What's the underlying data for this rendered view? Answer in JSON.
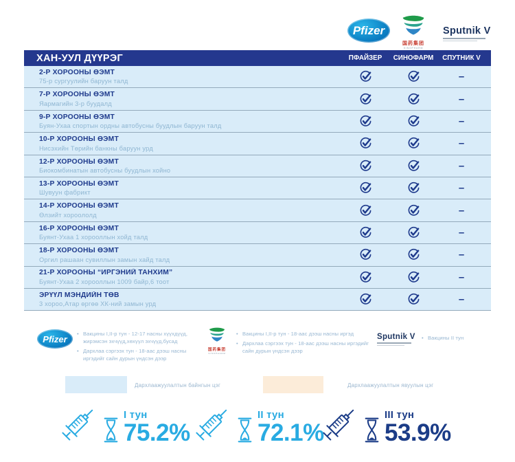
{
  "colors": {
    "navy_header": "#24388e",
    "check_navy": "#1e3a8c",
    "row_blue": "#d9ecf9",
    "cyan": "#29abe2",
    "stat_navy": "#1b3c87",
    "peach": "#fcecd9",
    "pfizer_blue": "#0093d0"
  },
  "logos": {
    "pfizer_label": "Pfizer",
    "sinopharm_cn": "国药集团",
    "sinopharm_en": "SINOPHARM",
    "sputnik_label": "Sputnik V"
  },
  "table": {
    "title": "ХАН-УУЛ ДҮҮРЭГ",
    "columns": [
      "ПФАЙЗЕР",
      "СИНОФАРМ",
      "СПУТНИК V"
    ],
    "rows": [
      {
        "name": "2-Р ХОРООНЫ ӨЭМТ",
        "location": "75-р сургуулийн баруун талд",
        "pfizer": true,
        "sinopharm": true,
        "sputnik": false
      },
      {
        "name": "7-Р ХОРООНЫ ӨЭМТ",
        "location": "Яармагийн 3-р буудалд",
        "pfizer": true,
        "sinopharm": true,
        "sputnik": false
      },
      {
        "name": "9-Р ХОРООНЫ ӨЭМТ",
        "location": "Буян-Ухаа спортын ордны автобусны буудлын баруун талд",
        "pfizer": true,
        "sinopharm": true,
        "sputnik": false
      },
      {
        "name": "10-Р ХОРООНЫ ӨЭМТ",
        "location": "Нисэхийн Төрийн банкны баруун урд",
        "pfizer": true,
        "sinopharm": true,
        "sputnik": false
      },
      {
        "name": "12-Р ХОРООНЫ ӨЭМТ",
        "location": "Биокомбинатын автобусны буудлын хойно",
        "pfizer": true,
        "sinopharm": true,
        "sputnik": false
      },
      {
        "name": "13-Р ХОРООНЫ ӨЭМТ",
        "location": "Шувуун фабрикт",
        "pfizer": true,
        "sinopharm": true,
        "sputnik": false
      },
      {
        "name": "14-Р ХОРООНЫ ӨЭМТ",
        "location": "Өлзийт хороололд",
        "pfizer": true,
        "sinopharm": true,
        "sputnik": false
      },
      {
        "name": "16-Р ХОРООНЫ ӨЭМТ",
        "location": "Буянт-Ухаа 1 хорооллын хойд талд",
        "pfizer": true,
        "sinopharm": true,
        "sputnik": false
      },
      {
        "name": "18-Р ХОРООНЫ ӨЭМТ",
        "location": "Оргил рашаан сувиллын замын хайд  талд",
        "pfizer": true,
        "sinopharm": true,
        "sputnik": false
      },
      {
        "name": "21-Р  ХОРООНЫ “ИРГЭНИЙ ТАНХИМ”",
        "location": "Буянт-Ухаа 2 хорооллын 1009 байр,6 тоот",
        "pfizer": true,
        "sinopharm": true,
        "sputnik": false
      },
      {
        "name": "ЭРҮҮЛ МЭНДИЙН ТӨВ",
        "location": "3 хороо,Атар өргөө ХК-ний замын урд",
        "pfizer": true,
        "sinopharm": true,
        "sputnik": false
      }
    ]
  },
  "vaccine_notes": {
    "pfizer": [
      "Вакцины I,II-р тун - 12-17 насны хүүхдүүд, жирэмсэн эхчүүд,хөхүүл эхчүүд,бусад",
      "Дархлаа сэргээх тун - 18-аас дээш насны иргэдийг сайн дурын үндсэн дээр"
    ],
    "sinopharm": [
      "Вакцины I,II-р тун - 18-аас дээш насны иргэд",
      "Дархлаа сэргээх тун - 18-аас дээш насны иргэдийг сайн дурын үндсэн дээр"
    ],
    "sputnik": [
      "Вакцины II тун"
    ]
  },
  "point_legend": [
    {
      "label": "Дархлаажуулалтын байнгын цэг",
      "color": "#d9ecf9"
    },
    {
      "label": "Дархлаажуулалтын явуулын цэг",
      "color": "#fcecd9"
    }
  ],
  "stats": [
    {
      "label": "I тун",
      "value": "75.2%",
      "color": "#29abe2"
    },
    {
      "label": "II тун",
      "value": "72.1%",
      "color": "#29abe2"
    },
    {
      "label": "III тун",
      "value": "53.9%",
      "color": "#1b3c87"
    }
  ]
}
